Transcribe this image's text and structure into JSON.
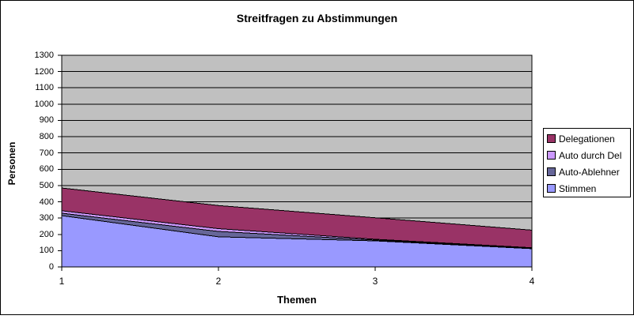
{
  "chart_data": {
    "type": "area",
    "stacked": true,
    "title": "Streitfragen zu Abstimmungen",
    "xlabel": "Themen",
    "ylabel": "Personen",
    "categories": [
      "1",
      "2",
      "3",
      "4"
    ],
    "series": [
      {
        "name": "Stimmen",
        "color": "#9999ff",
        "values": [
          315,
          185,
          160,
          112
        ]
      },
      {
        "name": "Auto-Ablehner",
        "color": "#666699",
        "values": [
          15,
          33,
          5,
          3
        ]
      },
      {
        "name": "Auto durch Del",
        "color": "#cc99ff",
        "values": [
          15,
          17,
          5,
          3
        ]
      },
      {
        "name": "Delegationen",
        "color": "#993366",
        "values": [
          140,
          142,
          132,
          108
        ]
      }
    ],
    "legend": [
      {
        "label": "Delegationen",
        "color": "#993366"
      },
      {
        "label": "Auto durch Del",
        "color": "#cc99ff"
      },
      {
        "label": "Auto-Ablehner",
        "color": "#666699"
      },
      {
        "label": "Stimmen",
        "color": "#9999ff"
      }
    ],
    "legend_position": "right",
    "ylim": [
      0,
      1300
    ],
    "y_ticks": [
      "0",
      "100",
      "200",
      "300",
      "400",
      "500",
      "600",
      "700",
      "800",
      "900",
      "1000",
      "1100",
      "1200",
      "1300"
    ],
    "grid": "horizontal",
    "plot_bg": "#c0c0c0",
    "gridline_color": "#000000"
  }
}
